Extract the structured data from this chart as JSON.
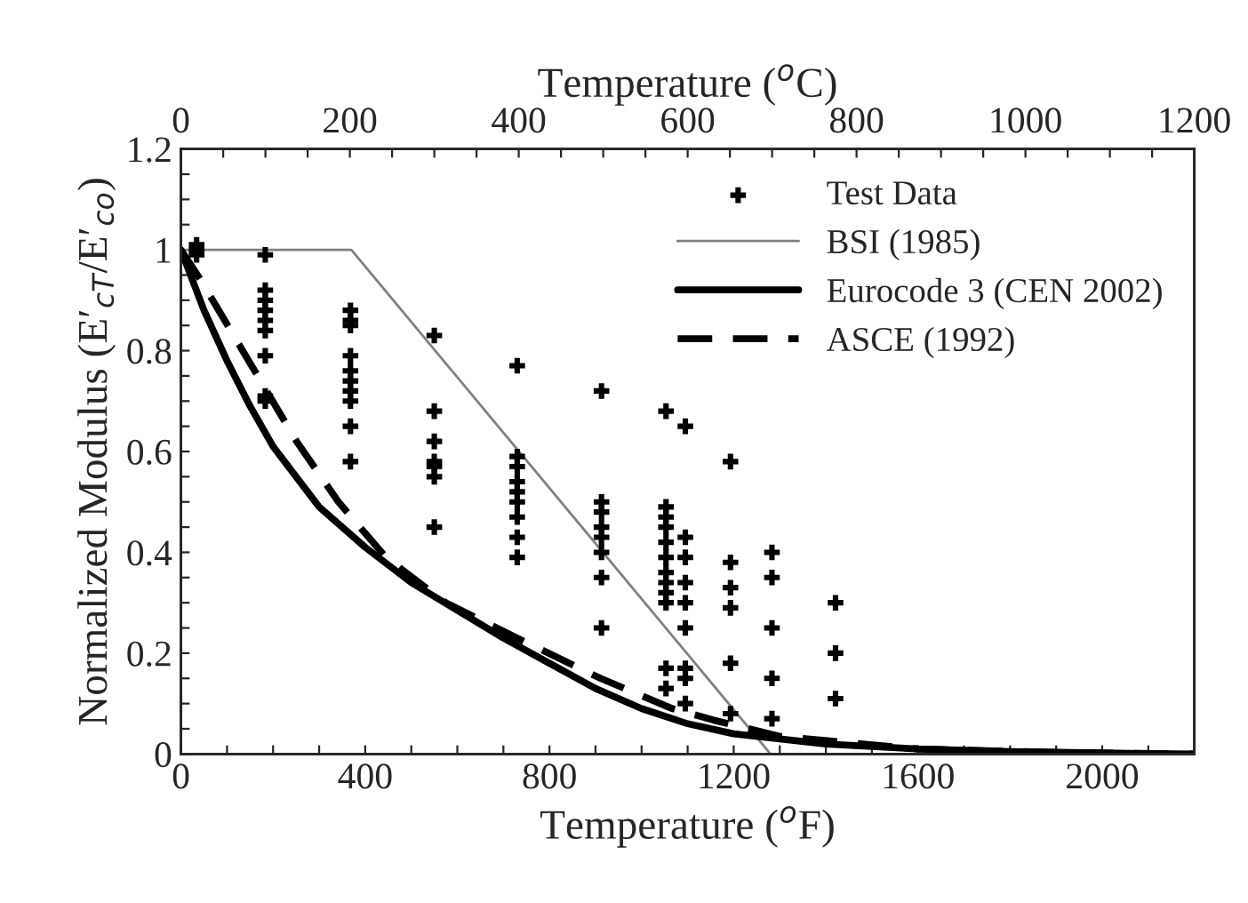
{
  "chart_data": {
    "type": "scatter",
    "xlabel": "Temperature ($^{o}$F)",
    "ylabel": "Normalized Modulus (E′$_{cT}$/E′$_{co}$)",
    "x2label": "Temperature ($^{o}$C)",
    "xlim": [
      0,
      2200
    ],
    "ylim": [
      0,
      1.2
    ],
    "x2lim": [
      0,
      1200
    ],
    "xticks": [
      0,
      {
        "value": 100,
        "label": null
      },
      {
        "value": 200,
        "label": null
      },
      {
        "value": 300,
        "label": null
      },
      400,
      {
        "value": 500,
        "label": null
      },
      {
        "value": 600,
        "label": null
      },
      {
        "value": 700,
        "label": null
      },
      800,
      {
        "value": 900,
        "label": null
      },
      {
        "value": 1000,
        "label": null
      },
      {
        "value": 1100,
        "label": null
      },
      1200,
      {
        "value": 1300,
        "label": null
      },
      {
        "value": 1400,
        "label": null
      },
      {
        "value": 1500,
        "label": null
      },
      1600,
      {
        "value": 1700,
        "label": null
      },
      {
        "value": 1800,
        "label": null
      },
      {
        "value": 1900,
        "label": null
      },
      2000,
      {
        "value": 2100,
        "label": null
      },
      {
        "value": 2200,
        "label": null
      }
    ],
    "x2ticks": [
      0,
      {
        "value": 50,
        "label": null
      },
      200,
      {
        "value": 100,
        "label": null
      },
      {
        "value": 150,
        "label": null
      },
      {
        "value": 250,
        "label": null
      },
      {
        "value": 300,
        "label": null
      },
      {
        "value": 350,
        "label": null
      },
      400,
      {
        "value": 450,
        "label": null
      },
      {
        "value": 500,
        "label": null
      },
      {
        "value": 550,
        "label": null
      },
      600,
      {
        "value": 650,
        "label": null
      },
      {
        "value": 700,
        "label": null
      },
      {
        "value": 750,
        "label": null
      },
      800,
      {
        "value": 850,
        "label": null
      },
      {
        "value": 900,
        "label": null
      },
      {
        "value": 950,
        "label": null
      },
      1000,
      {
        "value": 1050,
        "label": null
      },
      {
        "value": 1100,
        "label": null
      },
      {
        "value": 1150,
        "label": null
      },
      1200
    ],
    "yticks": [
      0,
      {
        "value": 0.05,
        "label": null
      },
      {
        "value": 0.1,
        "label": null
      },
      {
        "value": 0.15,
        "label": null
      },
      0.2,
      {
        "value": 0.25,
        "label": null
      },
      {
        "value": 0.3,
        "label": null
      },
      {
        "value": 0.35,
        "label": null
      },
      0.4,
      {
        "value": 0.45,
        "label": null
      },
      {
        "value": 0.5,
        "label": null
      },
      {
        "value": 0.55,
        "label": null
      },
      0.6,
      {
        "value": 0.65,
        "label": null
      },
      {
        "value": 0.7,
        "label": null
      },
      {
        "value": 0.75,
        "label": null
      },
      0.8,
      {
        "value": 0.85,
        "label": null
      },
      {
        "value": 0.9,
        "label": null
      },
      {
        "value": 0.95,
        "label": null
      },
      1,
      {
        "value": 1.05,
        "label": null
      },
      {
        "value": 1.1,
        "label": null
      },
      {
        "value": 1.15,
        "label": null
      },
      1.2
    ],
    "grid": false,
    "legend": "top right",
    "series": [
      {
        "name": "Test Data",
        "marker": "cross",
        "color": "#000000",
        "x": [
          34,
          34,
          34,
          183,
          183,
          183,
          183,
          183,
          183,
          183,
          183,
          183,
          368,
          368,
          368,
          368,
          368,
          368,
          368,
          368,
          368,
          368,
          550,
          550,
          550,
          550,
          550,
          550,
          550,
          730,
          730,
          730,
          730,
          730,
          730,
          730,
          730,
          730,
          913,
          913,
          913,
          913,
          913,
          913,
          913,
          913,
          1053,
          1053,
          1053,
          1053,
          1053,
          1053,
          1053,
          1053,
          1053,
          1053,
          1053,
          1053,
          1095,
          1095,
          1095,
          1095,
          1095,
          1095,
          1095,
          1095,
          1095,
          1193,
          1193,
          1193,
          1193,
          1193,
          1193,
          1283,
          1283,
          1283,
          1283,
          1283,
          1421,
          1421,
          1421
        ],
        "values": [
          1.01,
          0.99,
          1.0,
          0.99,
          0.92,
          0.9,
          0.88,
          0.86,
          0.84,
          0.79,
          0.71,
          0.7,
          0.88,
          0.86,
          0.85,
          0.79,
          0.76,
          0.74,
          0.72,
          0.7,
          0.65,
          0.58,
          0.83,
          0.68,
          0.62,
          0.58,
          0.57,
          0.55,
          0.45,
          0.77,
          0.59,
          0.57,
          0.54,
          0.52,
          0.5,
          0.47,
          0.43,
          0.39,
          0.72,
          0.5,
          0.48,
          0.45,
          0.43,
          0.4,
          0.35,
          0.25,
          0.68,
          0.49,
          0.47,
          0.45,
          0.42,
          0.39,
          0.36,
          0.34,
          0.32,
          0.3,
          0.17,
          0.13,
          0.65,
          0.43,
          0.39,
          0.34,
          0.3,
          0.25,
          0.17,
          0.15,
          0.1,
          0.58,
          0.38,
          0.33,
          0.29,
          0.18,
          0.08,
          0.4,
          0.35,
          0.25,
          0.15,
          0.07,
          0.3,
          0.2,
          0.11
        ]
      },
      {
        "name": "BSI (1985)",
        "type": "line",
        "line_style": "solid",
        "color": "#808080",
        "x": [
          0,
          370,
          1280
        ],
        "values": [
          1,
          1,
          0
        ]
      },
      {
        "name": "Eurocode 3 (CEN 2002)",
        "type": "line",
        "line_style": "solid",
        "color": "#000000",
        "x": [
          0,
          25,
          50,
          100,
          150,
          200,
          300,
          400,
          500,
          600,
          700,
          800,
          900,
          1000,
          1100,
          1200,
          1400,
          1600,
          1800,
          2000,
          2200
        ],
        "values": [
          1,
          0.94,
          0.88,
          0.78,
          0.69,
          0.61,
          0.49,
          0.41,
          0.34,
          0.285,
          0.23,
          0.18,
          0.13,
          0.09,
          0.06,
          0.04,
          0.02,
          0.01,
          0.005,
          0.002,
          0
        ]
      },
      {
        "name": "ASCE (1992)",
        "type": "line",
        "line_style": "dashed",
        "color": "#000000",
        "x": [
          0,
          43,
          147,
          251,
          342,
          445,
          575,
          730,
          911,
          1067,
          1157,
          1300,
          1600,
          1900,
          2200
        ],
        "values": [
          1,
          0.94,
          0.78,
          0.62,
          0.5,
          0.39,
          0.3,
          0.23,
          0.15,
          0.09,
          0.067,
          0.035,
          0.01,
          0.003,
          0
        ]
      }
    ]
  }
}
